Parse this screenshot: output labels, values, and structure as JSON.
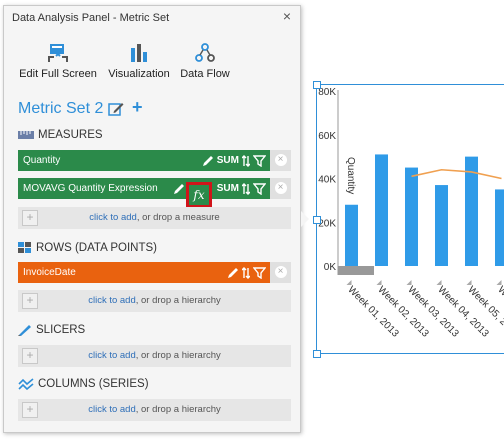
{
  "panel": {
    "title": "Data Analysis Panel - Metric Set",
    "close_glyph": "×"
  },
  "toolbar": {
    "items": [
      {
        "label": "Edit Full Screen",
        "icon": "edit-full-screen-icon"
      },
      {
        "label": "Visualization",
        "icon": "visualization-icon"
      },
      {
        "label": "Data Flow",
        "icon": "data-flow-icon"
      }
    ]
  },
  "metric_set": {
    "title": "Metric Set 2",
    "add_glyph": "+"
  },
  "sections": {
    "measures": "MEASURES",
    "rows": "ROWS (DATA POINTS)",
    "slicers": "SLICERS",
    "columns": "COLUMNS (SERIES)"
  },
  "measures": [
    {
      "label": "Quantity",
      "agg": "SUM"
    },
    {
      "label": "MOVAVG Quantity Expression",
      "agg": "SUM",
      "fx": "fx"
    }
  ],
  "rows": [
    {
      "label": "InvoiceDate"
    }
  ],
  "drop_zones": {
    "link": "click to add",
    "measure_suffix": ", or drop a measure",
    "hierarchy_suffix": ", or drop a hierarchy"
  },
  "colors": {
    "accent": "#2f8fd8",
    "measure_bar": "#2b8a4a",
    "row_bar": "#e9620f",
    "highlight": "#d0141a",
    "line_series": "#f0a050"
  },
  "chart_data": {
    "type": "bar",
    "ylabel": "Quantity",
    "yticks": [
      "80K",
      "60K",
      "40K",
      "20K",
      "0K"
    ],
    "ylim": [
      0,
      80000
    ],
    "categories": [
      "Week 01, 2013",
      "Week 02, 2013",
      "Week 03, 2013",
      "Week 04, 2013",
      "Week 05, 2013",
      "Week 0"
    ],
    "series": [
      {
        "type": "bar",
        "values": [
          28000,
          51000,
          45000,
          37000,
          50000,
          35000
        ]
      },
      {
        "type": "line",
        "values": [
          null,
          null,
          41000,
          44000,
          43000,
          40000
        ]
      }
    ]
  }
}
